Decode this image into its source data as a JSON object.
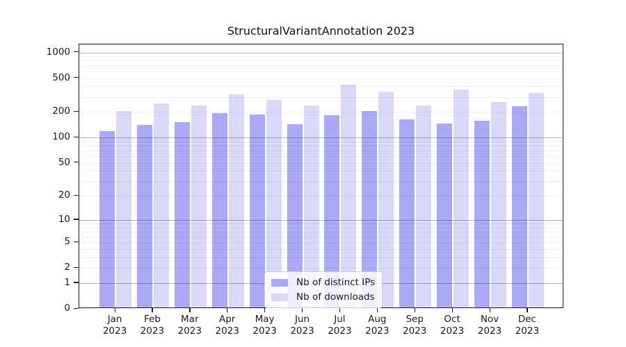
{
  "chart_data": {
    "type": "bar",
    "title": "StructuralVariantAnnotation 2023",
    "categories": [
      "Jan 2023",
      "Feb 2023",
      "Mar 2023",
      "Apr 2023",
      "May 2023",
      "Jun 2023",
      "Jul 2023",
      "Aug 2023",
      "Sep 2023",
      "Oct 2023",
      "Nov 2023",
      "Dec 2023"
    ],
    "series": [
      {
        "name": "Nb of distinct IPs",
        "color": "#a9a9f5",
        "values": [
          114,
          137,
          147,
          188,
          180,
          138,
          176,
          197,
          158,
          142,
          151,
          227
        ]
      },
      {
        "name": "Nb of downloads",
        "color": "#d9d9f7",
        "values": [
          196,
          241,
          229,
          310,
          265,
          229,
          403,
          334,
          232,
          351,
          254,
          324
        ]
      }
    ],
    "xlabel": "",
    "ylabel": "",
    "yscale": "log1p",
    "yticks": [
      0,
      1,
      2,
      5,
      10,
      20,
      50,
      100,
      200,
      500,
      1000
    ],
    "ylim": [
      0,
      1240
    ],
    "grid": true,
    "legend_position": "lower center",
    "colors": {
      "major_gridline": "#b8b8b8",
      "minor_gridline": "#ededed",
      "spine": "#1a1a1a"
    }
  }
}
